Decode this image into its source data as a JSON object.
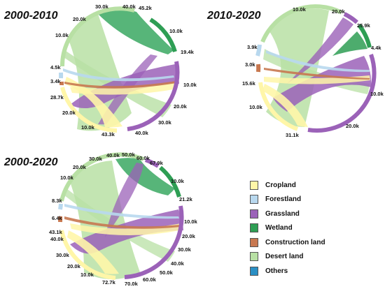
{
  "panels": [
    {
      "title": "2000-2010",
      "labels": [
        {
          "text": "30.0k"
        },
        {
          "text": "40.0k"
        },
        {
          "text": "45.2k"
        },
        {
          "text": "20.0k"
        },
        {
          "text": "10.0k"
        },
        {
          "text": "10.0k"
        },
        {
          "text": "19.4k"
        },
        {
          "text": "4.5k"
        },
        {
          "text": "3.4k"
        },
        {
          "text": "28.7k"
        },
        {
          "text": "10.0k"
        },
        {
          "text": "20.0k"
        },
        {
          "text": "10.0k"
        },
        {
          "text": "20.0k"
        },
        {
          "text": "30.0k"
        },
        {
          "text": "43.3k"
        },
        {
          "text": "40.0k"
        }
      ]
    },
    {
      "title": "2010-2020",
      "labels": [
        {
          "text": "10.0k"
        },
        {
          "text": "20.0k"
        },
        {
          "text": "25.9k"
        },
        {
          "text": "4.4k"
        },
        {
          "text": "3.9k"
        },
        {
          "text": "3.0k"
        },
        {
          "text": "15.6k"
        },
        {
          "text": "10.0k"
        },
        {
          "text": "10.0k"
        },
        {
          "text": "31.1k"
        },
        {
          "text": "20.0k"
        }
      ]
    },
    {
      "title": "2000-2020",
      "labels": [
        {
          "text": "40.0k"
        },
        {
          "text": "50.0k"
        },
        {
          "text": "60.0k"
        },
        {
          "text": "67.9k"
        },
        {
          "text": "30.0k"
        },
        {
          "text": "20.0k"
        },
        {
          "text": "10.0k"
        },
        {
          "text": "10.0k"
        },
        {
          "text": "21.2k"
        },
        {
          "text": "8.3k"
        },
        {
          "text": "6.4k"
        },
        {
          "text": "43.1k"
        },
        {
          "text": "40.0k"
        },
        {
          "text": "30.0k"
        },
        {
          "text": "20.0k"
        },
        {
          "text": "10.0k"
        },
        {
          "text": "72.7k"
        },
        {
          "text": "70.0k"
        },
        {
          "text": "60.0k"
        },
        {
          "text": "50.0k"
        },
        {
          "text": "40.0k"
        },
        {
          "text": "30.0k"
        },
        {
          "text": "20.0k"
        },
        {
          "text": "10.0k"
        }
      ]
    }
  ],
  "legend": [
    {
      "label": "Cropland",
      "color": "#fff6a8"
    },
    {
      "label": "Forestland",
      "color": "#b8d8ee"
    },
    {
      "label": "Grassland",
      "color": "#9b62b8"
    },
    {
      "label": "Wetland",
      "color": "#2e9e54"
    },
    {
      "label": "Construction land",
      "color": "#c87850"
    },
    {
      "label": "Desert land",
      "color": "#b8e0a4"
    },
    {
      "label": "Others",
      "color": "#2a8fc4"
    }
  ]
}
